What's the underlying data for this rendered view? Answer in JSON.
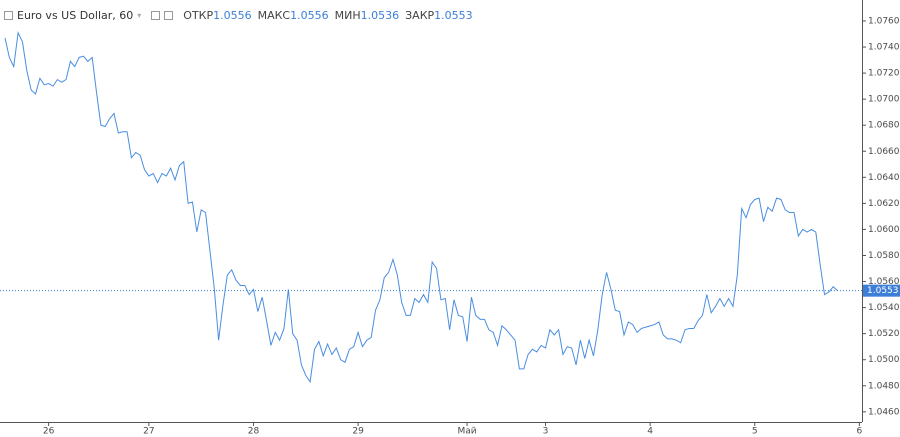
{
  "header": {
    "title": "Euro vs US Dollar, 60",
    "ohlc": [
      {
        "label": "ОТКР",
        "value": "1.0556"
      },
      {
        "label": "МАКС",
        "value": "1.0556"
      },
      {
        "label": "МИН",
        "value": "1.0536"
      },
      {
        "label": "ЗАКР",
        "value": "1.0553"
      }
    ]
  },
  "chart_data": {
    "type": "line",
    "x": [
      0,
      1,
      2,
      3,
      4,
      5,
      6,
      7,
      8,
      9,
      10,
      11,
      12,
      13,
      14,
      15,
      16,
      17,
      18,
      19,
      20,
      21,
      22,
      23,
      24,
      25,
      26,
      27,
      28,
      29,
      30,
      31,
      32,
      33,
      34,
      35,
      36,
      37,
      38,
      39,
      40,
      41,
      42,
      43,
      44,
      45,
      46,
      47,
      48,
      49,
      50,
      51,
      52,
      53,
      54,
      55,
      56,
      57,
      58,
      59,
      60,
      61,
      62,
      63,
      64,
      65,
      66,
      67,
      68,
      69,
      70,
      71,
      72,
      73,
      74,
      75,
      76,
      77,
      78,
      79,
      80,
      81,
      82,
      83,
      84,
      85,
      86,
      87,
      88,
      89,
      90,
      91,
      92,
      93,
      94,
      95,
      96,
      97,
      98,
      99,
      100,
      101,
      102,
      103,
      104,
      105,
      106,
      107,
      108,
      109,
      110,
      111,
      112,
      113,
      114,
      115,
      116,
      117,
      118,
      119,
      120,
      121,
      122,
      123,
      124,
      125,
      126,
      127,
      128,
      129,
      130,
      131,
      132,
      133,
      134,
      135,
      136,
      137,
      138,
      139,
      140,
      141,
      142,
      143,
      144,
      145,
      146,
      147,
      148,
      149,
      150,
      151,
      152,
      153,
      154,
      155,
      156,
      157,
      158,
      159,
      160,
      161,
      162,
      163,
      164,
      165,
      166,
      167,
      168,
      169,
      170,
      171,
      172,
      173,
      174,
      175,
      176,
      177,
      178,
      179,
      180,
      181,
      182,
      183,
      184,
      185,
      186,
      187,
      188,
      189,
      190,
      191
    ],
    "series": [
      {
        "color": "#4a8ee0",
        "values": [
          1.0747,
          1.0732,
          1.0725,
          1.0751,
          1.0744,
          1.0722,
          1.0707,
          1.0704,
          1.0716,
          1.0711,
          1.0712,
          1.071,
          1.0715,
          1.0713,
          1.0715,
          1.0729,
          1.0725,
          1.0732,
          1.0733,
          1.0729,
          1.0732,
          1.0705,
          1.068,
          1.0679,
          1.0685,
          1.0689,
          1.0674,
          1.0675,
          1.0675,
          1.0655,
          1.0659,
          1.0657,
          1.0646,
          1.0641,
          1.0643,
          1.0636,
          1.0643,
          1.0641,
          1.0647,
          1.0638,
          1.0649,
          1.0652,
          1.062,
          1.0621,
          1.0598,
          1.0615,
          1.0613,
          1.0584,
          1.0555,
          1.0515,
          1.0542,
          1.0565,
          1.0569,
          1.0561,
          1.0557,
          1.0557,
          1.055,
          1.0554,
          1.0537,
          1.0548,
          1.053,
          1.0511,
          1.0521,
          1.0515,
          1.0524,
          1.0554,
          1.052,
          1.0515,
          1.0496,
          1.0488,
          1.0483,
          1.0508,
          1.0514,
          1.0503,
          1.0512,
          1.0504,
          1.0509,
          1.05,
          1.0498,
          1.0508,
          1.051,
          1.0521,
          1.051,
          1.0515,
          1.0517,
          1.0538,
          1.0546,
          1.0563,
          1.0567,
          1.0577,
          1.0565,
          1.0544,
          1.0534,
          1.0534,
          1.0547,
          1.0544,
          1.055,
          1.0544,
          1.0575,
          1.057,
          1.0546,
          1.0547,
          1.0523,
          1.0546,
          1.0534,
          1.0533,
          1.0514,
          1.0548,
          1.0534,
          1.0531,
          1.0531,
          1.0523,
          1.0521,
          1.0511,
          1.0526,
          1.0523,
          1.0519,
          1.0515,
          1.0493,
          1.0493,
          1.0504,
          1.0508,
          1.0506,
          1.0511,
          1.0509,
          1.0523,
          1.0519,
          1.0523,
          1.0504,
          1.051,
          1.0509,
          1.0496,
          1.0515,
          1.0501,
          1.0515,
          1.0503,
          1.0523,
          1.055,
          1.0567,
          1.0554,
          1.0538,
          1.0537,
          1.0519,
          1.0529,
          1.0527,
          1.0521,
          1.0524,
          1.0525,
          1.0526,
          1.0527,
          1.0529,
          1.0519,
          1.0516,
          1.0516,
          1.0515,
          1.0513,
          1.0523,
          1.0524,
          1.0524,
          1.053,
          1.0534,
          1.055,
          1.0536,
          1.0541,
          1.0547,
          1.0541,
          1.0547,
          1.0541,
          1.0565,
          1.0616,
          1.0609,
          1.0619,
          1.0623,
          1.0624,
          1.0606,
          1.0617,
          1.0614,
          1.0624,
          1.0623,
          1.0615,
          1.0613,
          1.0613,
          1.0595,
          1.06,
          1.0598,
          1.06,
          1.0598,
          1.0573,
          1.055,
          1.0552,
          1.0556,
          1.0553
        ]
      }
    ],
    "xlim": [
      -1.15,
      196.6
    ],
    "xticks": [
      {
        "value": 10,
        "label": "26"
      },
      {
        "value": 33,
        "label": "27"
      },
      {
        "value": 57,
        "label": "28"
      },
      {
        "value": 81,
        "label": "29"
      },
      {
        "value": 106,
        "label": "Май"
      },
      {
        "value": 124,
        "label": "3"
      },
      {
        "value": 148,
        "label": "4"
      },
      {
        "value": 172,
        "label": "5"
      },
      {
        "value": 196,
        "label": "6"
      }
    ],
    "ylim": [
      1.04522,
      1.07761
    ],
    "yticks": [
      {
        "value": 1.046,
        "label": "1.0460"
      },
      {
        "value": 1.048,
        "label": "1.0480"
      },
      {
        "value": 1.05,
        "label": "1.0500"
      },
      {
        "value": 1.052,
        "label": "1.0520"
      },
      {
        "value": 1.054,
        "label": "1.0540"
      },
      {
        "value": 1.056,
        "label": "1.0560"
      },
      {
        "value": 1.058,
        "label": "1.0580"
      },
      {
        "value": 1.06,
        "label": "1.0600"
      },
      {
        "value": 1.062,
        "label": "1.0620"
      },
      {
        "value": 1.064,
        "label": "1.0640"
      },
      {
        "value": 1.066,
        "label": "1.0660"
      },
      {
        "value": 1.068,
        "label": "1.0680"
      },
      {
        "value": 1.07,
        "label": "1.0700"
      },
      {
        "value": 1.072,
        "label": "1.0720"
      },
      {
        "value": 1.074,
        "label": "1.0740"
      },
      {
        "value": 1.076,
        "label": "1.0760"
      }
    ],
    "last_price": {
      "value": 1.0553,
      "label": "1.0553",
      "color": "#3d7fd6"
    }
  }
}
